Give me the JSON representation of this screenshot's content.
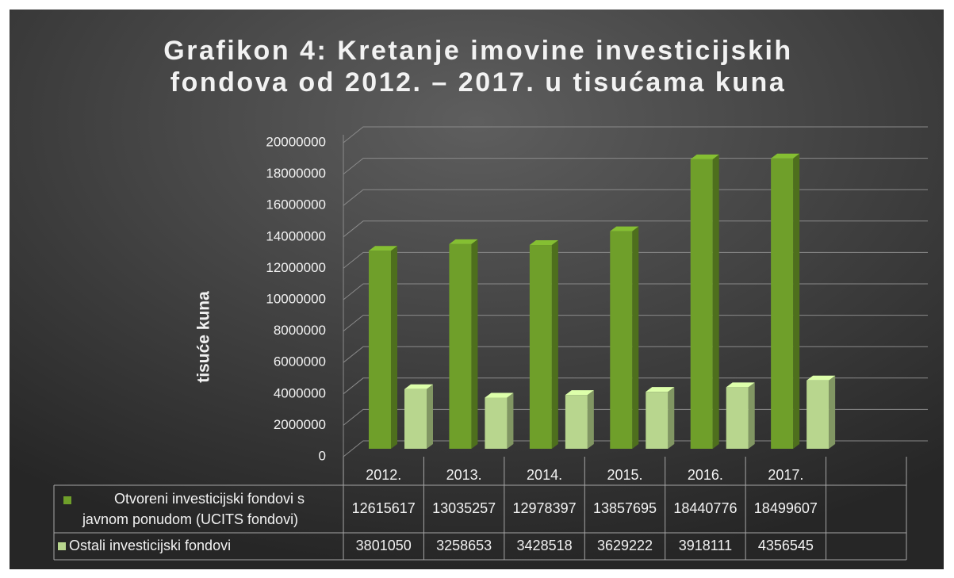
{
  "chart_data": {
    "type": "bar",
    "title": [
      "Grafikon 4: Kretanje imovine investicijskih",
      "fondova od 2012. – 2017. u tisućama kuna"
    ],
    "y_label": "tisuće kuna",
    "categories": [
      "2012.",
      "2013.",
      "2014.",
      "2015.",
      "2016.",
      "2017."
    ],
    "series": [
      {
        "name": "Otvoreni investicijski fondovi s javnom ponudom (UCITS fondovi)",
        "color": "#6f9f2a",
        "values": [
          12615617,
          13035257,
          12978397,
          13857695,
          18440776,
          18499607
        ]
      },
      {
        "name": "Ostali investicijski fondovi",
        "color": "#b8d68e",
        "values": [
          3801050,
          3258653,
          3428518,
          3629222,
          3918111,
          4356545
        ]
      }
    ],
    "ylim": [
      0,
      20000000
    ],
    "yticks": [
      0,
      2000000,
      4000000,
      6000000,
      8000000,
      10000000,
      12000000,
      14000000,
      16000000,
      18000000,
      20000000
    ],
    "grid": true,
    "data_table": true
  }
}
